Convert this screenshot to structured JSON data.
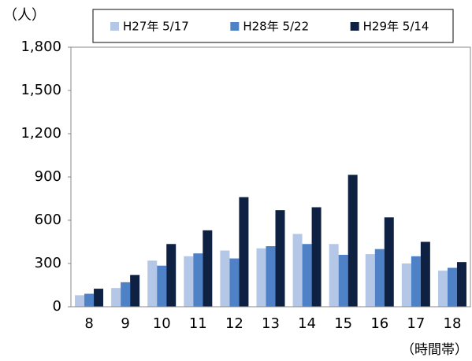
{
  "chart_data": {
    "type": "bar",
    "y_unit_label": "（人）",
    "x_label": "（時間帯）",
    "categories": [
      "8",
      "9",
      "10",
      "11",
      "12",
      "13",
      "14",
      "15",
      "16",
      "17",
      "18"
    ],
    "series": [
      {
        "name": "H27年 5/17",
        "color": "#b4c7e7",
        "values": [
          80,
          130,
          320,
          350,
          390,
          405,
          505,
          435,
          365,
          300,
          250
        ]
      },
      {
        "name": "H28年 5/22",
        "color": "#4f81c7",
        "values": [
          90,
          170,
          285,
          370,
          335,
          420,
          435,
          360,
          400,
          350,
          270
        ]
      },
      {
        "name": "H29年 5/14",
        "color": "#0f2143",
        "values": [
          125,
          220,
          435,
          530,
          760,
          670,
          690,
          915,
          620,
          450,
          310
        ]
      }
    ],
    "ylim": [
      0,
      1800
    ],
    "yticks": [
      0,
      300,
      600,
      900,
      {
        "value": 1200,
        "label": "1,200"
      },
      {
        "value": 1500,
        "label": "1,500"
      },
      {
        "value": 1800,
        "label": "1,800"
      }
    ],
    "legend": "top"
  }
}
